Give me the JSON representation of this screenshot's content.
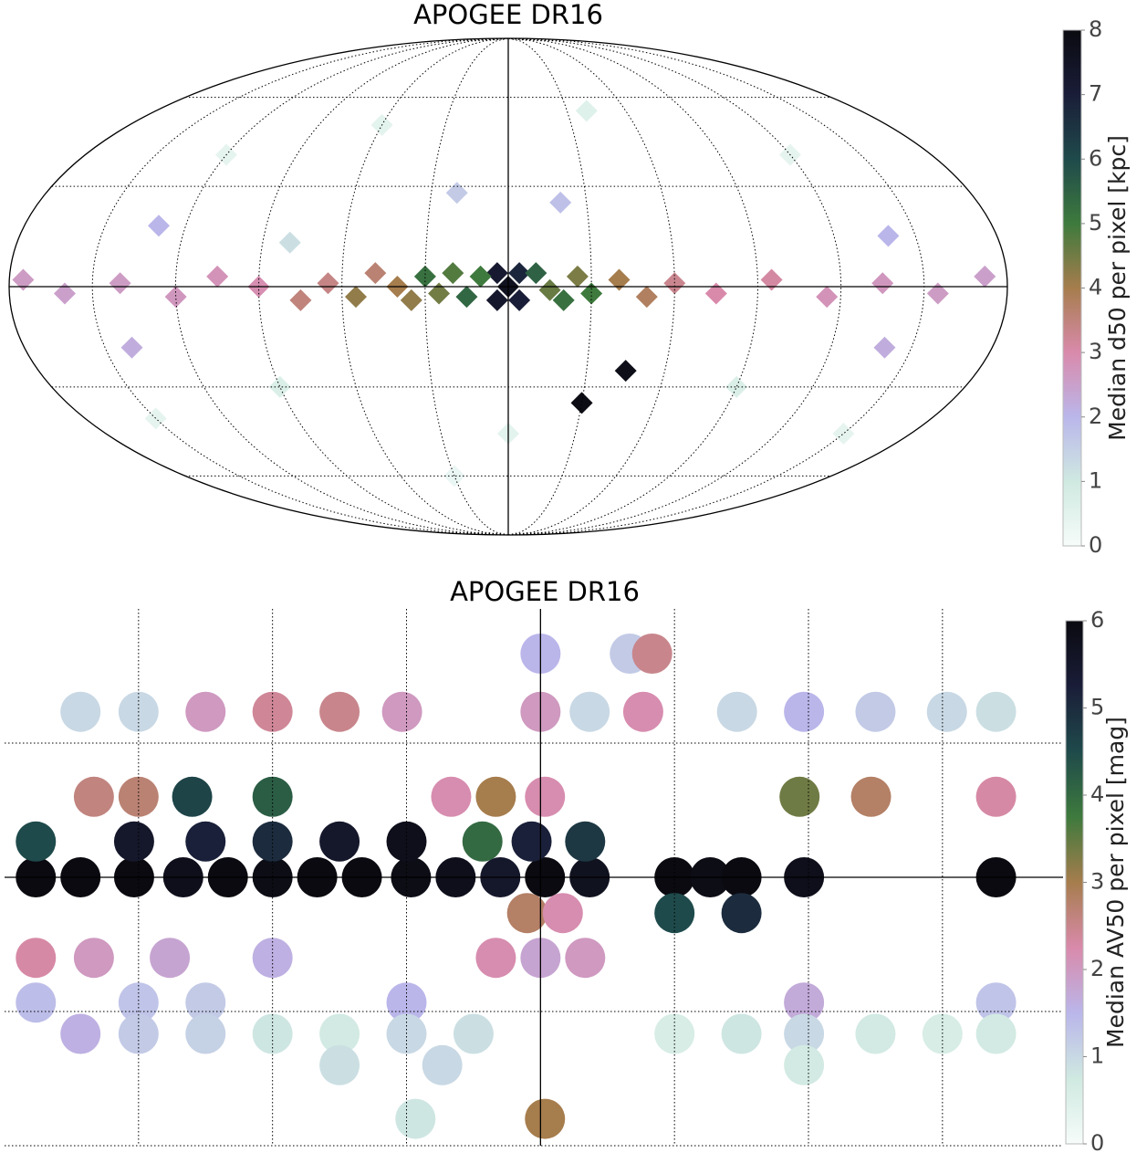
{
  "chart_data": [
    {
      "type": "mollweide",
      "title": "APOGEE DR16",
      "lon": [
        0,
        4,
        -4,
        4,
        -4,
        10,
        15,
        20,
        25,
        30,
        35,
        -10,
        -15,
        -20,
        -25,
        -30,
        40,
        48,
        55,
        65,
        75,
        -40,
        -50,
        -60,
        -75,
        90,
        105,
        120,
        140,
        160,
        175,
        -95,
        -115,
        -135,
        -155,
        -172,
        80,
        -45,
        -30,
        60,
        -40,
        120,
        -120,
        150,
        -150,
        0,
        30,
        90,
        -90,
        20,
        -20,
        130,
        -140,
        140,
        -140
      ],
      "lat": [
        0,
        4,
        -4,
        -4,
        4,
        3,
        -3,
        4,
        -2,
        3,
        -4,
        4,
        -1,
        -4,
        3,
        -2,
        0,
        4,
        -3,
        1,
        -4,
        2,
        -3,
        1,
        -2,
        0,
        3,
        -3,
        1,
        -2,
        2,
        2,
        -3,
        1,
        -2,
        3,
        13,
        -25,
        -35,
        50,
        55,
        40,
        40,
        -40,
        -45,
        -45,
        -60,
        -30,
        -30,
        28,
        25,
        18,
        15,
        -18,
        -18
      ],
      "values": [
        7.6,
        7.2,
        7.0,
        7.3,
        6.8,
        5.0,
        5.4,
        4.8,
        4.5,
        5.2,
        4.2,
        5.5,
        4.6,
        5.2,
        4.4,
        5.0,
        4.0,
        3.6,
        4.2,
        3.4,
        3.5,
        4.0,
        3.8,
        3.3,
        3.0,
        2.9,
        2.8,
        2.7,
        2.6,
        2.5,
        2.6,
        3.1,
        2.8,
        2.7,
        2.6,
        2.5,
        1.2,
        7.8,
        7.9,
        0.5,
        0.6,
        0.4,
        0.4,
        0.4,
        0.4,
        0.5,
        0.3,
        0.7,
        0.7,
        1.6,
        1.8,
        2.0,
        2.0,
        2.2,
        2.2
      ],
      "meridians": [
        -150,
        -120,
        -90,
        -60,
        -30,
        0,
        30,
        60,
        90,
        120,
        150
      ],
      "parallels": [
        -60,
        -30,
        0,
        30,
        60
      ],
      "clim": [
        0,
        8
      ],
      "cticks": [
        0,
        1,
        2,
        3,
        4,
        5,
        6,
        7,
        8
      ],
      "colorbar_label": "Median d50 per pixel   [kpc]",
      "colors": [
        "#f6fcfa",
        "#cfe9e1",
        "#bab6ea",
        "#d98aab",
        "#a67d4d",
        "#3e7a3d",
        "#1f4a4b",
        "#1a1d38",
        "#0a0a10"
      ]
    },
    {
      "type": "cartesian",
      "title": "APOGEE DR16",
      "xlim": [
        120,
        -117
      ],
      "ylim": [
        -60,
        60
      ],
      "xgrid": [
        90,
        60,
        30,
        0,
        -30,
        -60,
        -90
      ],
      "ygrid": [
        30,
        0,
        -30
      ],
      "lon": [
        113,
        103,
        91,
        80,
        70,
        60,
        50,
        40,
        29,
        19,
        9,
        -1,
        -11,
        -30,
        -38,
        -45,
        -59,
        -102,
        113,
        91,
        75,
        60,
        45,
        30,
        13,
        2,
        -10,
        100,
        90,
        78,
        60,
        20,
        10,
        -1,
        -58,
        -74,
        -102,
        103,
        90,
        75,
        60,
        45,
        31,
        0,
        -11,
        -23,
        -44,
        -59,
        -75,
        -91,
        -102,
        0,
        -20,
        -25,
        3,
        -5,
        -30,
        -45,
        113,
        100,
        83,
        60,
        0,
        10,
        -10,
        113,
        90,
        75,
        30,
        -59,
        -102,
        103,
        90,
        75,
        60,
        45,
        30,
        15,
        -30,
        -45,
        -59,
        -75,
        -90,
        -102,
        22,
        45,
        -59,
        28,
        -1
      ],
      "lat": [
        0,
        0,
        0,
        0,
        0,
        0,
        0,
        0,
        0,
        0,
        0,
        0,
        0,
        0,
        0,
        0,
        0,
        0,
        8,
        8,
        8,
        8,
        8,
        8,
        8,
        8,
        8,
        18,
        18,
        18,
        18,
        18,
        18,
        18,
        18,
        18,
        18,
        37,
        37,
        37,
        37,
        37,
        37,
        37,
        37,
        37,
        37,
        37,
        37,
        37,
        37,
        50,
        50,
        50,
        -8,
        -8,
        -8,
        -8,
        -18,
        -18,
        -18,
        -18,
        -18,
        -18,
        -18,
        -28,
        -28,
        -28,
        -28,
        -28,
        -28,
        -35,
        -35,
        -35,
        -35,
        -35,
        -35,
        -35,
        -35,
        -35,
        -35,
        -35,
        -35,
        -35,
        -42,
        -42,
        -42,
        -54,
        -54
      ],
      "values": [
        6,
        6,
        6,
        5.8,
        6,
        5.9,
        6,
        6,
        5.9,
        5.8,
        5.5,
        6,
        5.7,
        6,
        5.9,
        6,
        5.8,
        6,
        4.5,
        5.5,
        5.2,
        5.0,
        5.5,
        5.8,
        4.0,
        5.2,
        4.8,
        2.6,
        2.7,
        4.6,
        4.2,
        2.2,
        3.0,
        2.2,
        3.4,
        2.8,
        2.3,
        1.0,
        1.0,
        2.0,
        2.4,
        2.5,
        2.0,
        2.0,
        1.0,
        2.2,
        1.0,
        1.5,
        1.2,
        1.0,
        0.9,
        1.5,
        1.2,
        2.5,
        2.8,
        2.2,
        4.5,
        5.0,
        2.3,
        2.0,
        1.8,
        1.6,
        1.8,
        2.2,
        2.0,
        1.4,
        1.3,
        1.2,
        1.5,
        1.7,
        1.3,
        1.6,
        1.2,
        1.1,
        0.8,
        0.7,
        1.0,
        0.9,
        0.6,
        0.8,
        1.0,
        0.7,
        0.6,
        0.7,
        1.0,
        0.9,
        0.7,
        0.8,
        3.0
      ],
      "clim": [
        0,
        6
      ],
      "cticks": [
        0,
        1,
        2,
        3,
        4,
        5,
        6
      ],
      "colorbar_label": "Median AV50 per pixel   [mag]",
      "colors": [
        "#f6fcfa",
        "#cfe9e1",
        "#bab6ea",
        "#d98aab",
        "#a67d4d",
        "#3e7a3d",
        "#1f4a4b",
        "#1a1d38",
        "#0a0a10"
      ]
    }
  ]
}
